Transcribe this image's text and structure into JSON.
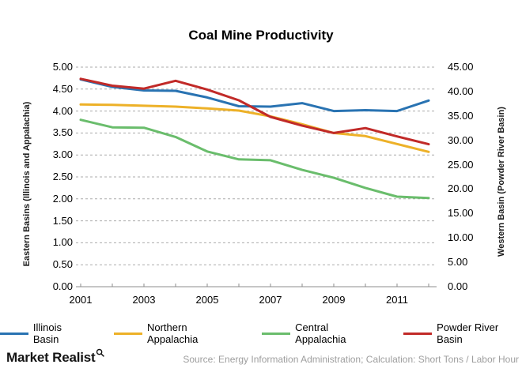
{
  "title": "Coal Mine Productivity",
  "chart_data": {
    "type": "line",
    "title": "Coal Mine Productivity",
    "x": [
      2001,
      2002,
      2003,
      2004,
      2005,
      2006,
      2007,
      2008,
      2009,
      2010,
      2011,
      2012
    ],
    "x_axis": {
      "tick_count": 12,
      "label_years": [
        "2001",
        "2003",
        "2005",
        "2007",
        "2009",
        "2011"
      ]
    },
    "left_axis": {
      "title": "Eastern Basins (Illinois  and Appalachia)",
      "min": 0,
      "max": 5,
      "step": 0.5,
      "tick_labels": [
        "5.00",
        "4.50",
        "4.00",
        "3.50",
        "3.00",
        "2.50",
        "2.00",
        "1.50",
        "1.00",
        "0.50",
        "0.00"
      ]
    },
    "right_axis": {
      "title": "Western Basin (Powder River Basin)",
      "min": 0,
      "max": 45,
      "step": 5,
      "tick_labels": [
        "45.00",
        "40.00",
        "35.00",
        "30.00",
        "25.00",
        "20.00",
        "15.00",
        "10.00",
        "5.00",
        "0.00"
      ]
    },
    "grid": "horizontal-dashed",
    "legend_position": "bottom",
    "units": "Short Tons / Labor Hour",
    "series": [
      {
        "name": "Illinois Basin",
        "axis": "left",
        "color": "#2973B2",
        "values": [
          4.72,
          4.55,
          4.47,
          4.46,
          4.31,
          4.11,
          4.1,
          4.18,
          4.0,
          4.02,
          4.0,
          4.24
        ]
      },
      {
        "name": "Northern Appalachia",
        "axis": "left",
        "color": "#EDB128",
        "values": [
          4.15,
          4.14,
          4.12,
          4.1,
          4.06,
          4.01,
          3.88,
          3.7,
          3.5,
          3.43,
          3.25,
          3.07
        ]
      },
      {
        "name": "Central Appalachia",
        "axis": "left",
        "color": "#6ABD6C",
        "values": [
          3.8,
          3.63,
          3.62,
          3.41,
          3.08,
          2.9,
          2.88,
          2.66,
          2.48,
          2.25,
          2.05,
          2.02
        ]
      },
      {
        "name": "Powder River Basin",
        "axis": "right",
        "color": "#C12A28",
        "values": [
          42.6,
          41.2,
          40.6,
          42.2,
          40.4,
          38.2,
          34.8,
          33.0,
          31.5,
          32.5,
          30.8,
          29.2
        ]
      }
    ]
  },
  "footer": {
    "brand": "Market Realist",
    "brand_icon": "magnifier-icon",
    "source": "Source:  Energy Information  Administration;  Calculation:  Short Tons / Labor Hour"
  },
  "ui": {
    "background": "#FFFFFF",
    "grid_color": "#ABABAB",
    "axis_color": "#8C8C8C",
    "tick_text_color": "#000000",
    "source_text_color": "#9E9E9E",
    "brand_text_color": "#141414"
  }
}
